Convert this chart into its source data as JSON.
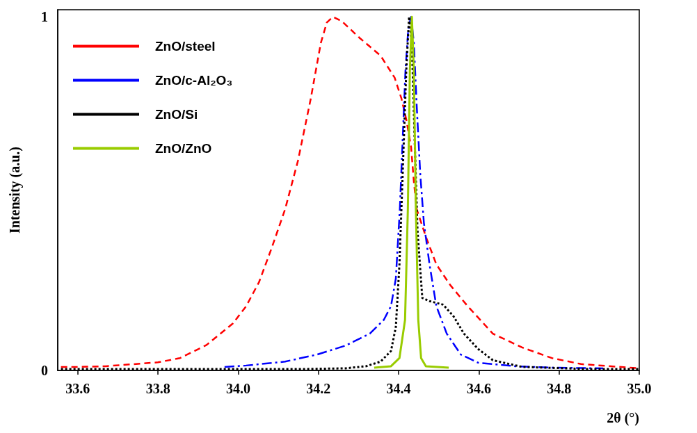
{
  "chart_data": {
    "type": "line",
    "xlabel": "2θ (°)",
    "ylabel": "Intensity (a.u.)",
    "xlim": [
      33.55,
      35.0
    ],
    "xticks": [
      {
        "value": 33.6,
        "label": "33.6"
      },
      {
        "value": 33.8,
        "label": "33.8"
      },
      {
        "value": 34.0,
        "label": "34.0"
      },
      {
        "value": 34.2,
        "label": "34.2"
      },
      {
        "value": 34.4,
        "label": "34.4"
      },
      {
        "value": 34.6,
        "label": "34.6"
      },
      {
        "value": 34.8,
        "label": "34.8"
      },
      {
        "value": 35.0,
        "label": "35.0"
      }
    ],
    "ylim": [
      0,
      1.02
    ],
    "yticks": [
      0,
      1
    ],
    "grid": false,
    "legend": "top left",
    "marker": "none",
    "series": [
      {
        "name": "ZnO/steel",
        "color": "#ff0000",
        "line_style": "dashed",
        "x": [
          33.558,
          33.6,
          33.67,
          33.8,
          33.855,
          33.921,
          33.987,
          34.02,
          34.052,
          34.084,
          34.117,
          34.149,
          34.181,
          34.206,
          34.221,
          34.236,
          34.258,
          34.302,
          34.355,
          34.39,
          34.407,
          34.419,
          34.431,
          34.438,
          34.445,
          34.468,
          34.494,
          34.529,
          34.572,
          34.635,
          34.708,
          34.782,
          34.855,
          35.0
        ],
        "values": [
          0.01,
          0.01,
          0.012,
          0.023,
          0.035,
          0.072,
          0.133,
          0.182,
          0.25,
          0.348,
          0.456,
          0.593,
          0.769,
          0.926,
          0.984,
          1.0,
          0.988,
          0.941,
          0.89,
          0.828,
          0.769,
          0.71,
          0.632,
          0.534,
          0.456,
          0.378,
          0.3,
          0.241,
          0.182,
          0.104,
          0.065,
          0.035,
          0.018,
          0.006
        ]
      },
      {
        "name": "ZnO/c-Al₂O₃",
        "color": "#0000ff",
        "line_style": "dashdot",
        "x": [
          33.966,
          34.02,
          34.117,
          34.197,
          34.267,
          34.328,
          34.363,
          34.381,
          34.393,
          34.403,
          34.41,
          34.417,
          34.424,
          34.431,
          34.438,
          34.445,
          34.454,
          34.463,
          34.477,
          34.494,
          34.52,
          34.555,
          34.598,
          34.69,
          34.782,
          34.91
        ],
        "values": [
          0.01,
          0.014,
          0.025,
          0.045,
          0.07,
          0.104,
          0.143,
          0.182,
          0.26,
          0.456,
          0.652,
          0.847,
          0.965,
          1.0,
          0.926,
          0.75,
          0.554,
          0.417,
          0.3,
          0.182,
          0.104,
          0.045,
          0.022,
          0.012,
          0.008,
          0.006
        ]
      },
      {
        "name": "ZnO/Si",
        "color": "#000000",
        "line_style": "dotted",
        "x": [
          33.558,
          33.921,
          34.163,
          34.267,
          34.319,
          34.355,
          34.381,
          34.393,
          34.402,
          34.41,
          34.419,
          34.426,
          34.433,
          34.44,
          34.447,
          34.459,
          34.477,
          34.511,
          34.537,
          34.563,
          34.598,
          34.635,
          34.708,
          34.873,
          35.0
        ],
        "values": [
          0.004,
          0.004,
          0.004,
          0.006,
          0.012,
          0.025,
          0.055,
          0.123,
          0.3,
          0.554,
          0.847,
          1.0,
          0.926,
          0.652,
          0.397,
          0.205,
          0.196,
          0.186,
          0.153,
          0.104,
          0.061,
          0.029,
          0.01,
          0.004,
          0.004
        ]
      },
      {
        "name": "ZnO/ZnO",
        "color": "#99cc00",
        "line_style": "solid",
        "x": [
          34.339,
          34.381,
          34.402,
          34.416,
          34.423,
          34.428,
          34.433,
          34.438,
          34.443,
          34.449,
          34.456,
          34.468,
          34.525
        ],
        "values": [
          0.008,
          0.012,
          0.035,
          0.143,
          0.456,
          0.847,
          1.0,
          0.847,
          0.456,
          0.143,
          0.035,
          0.012,
          0.008
        ]
      }
    ]
  }
}
